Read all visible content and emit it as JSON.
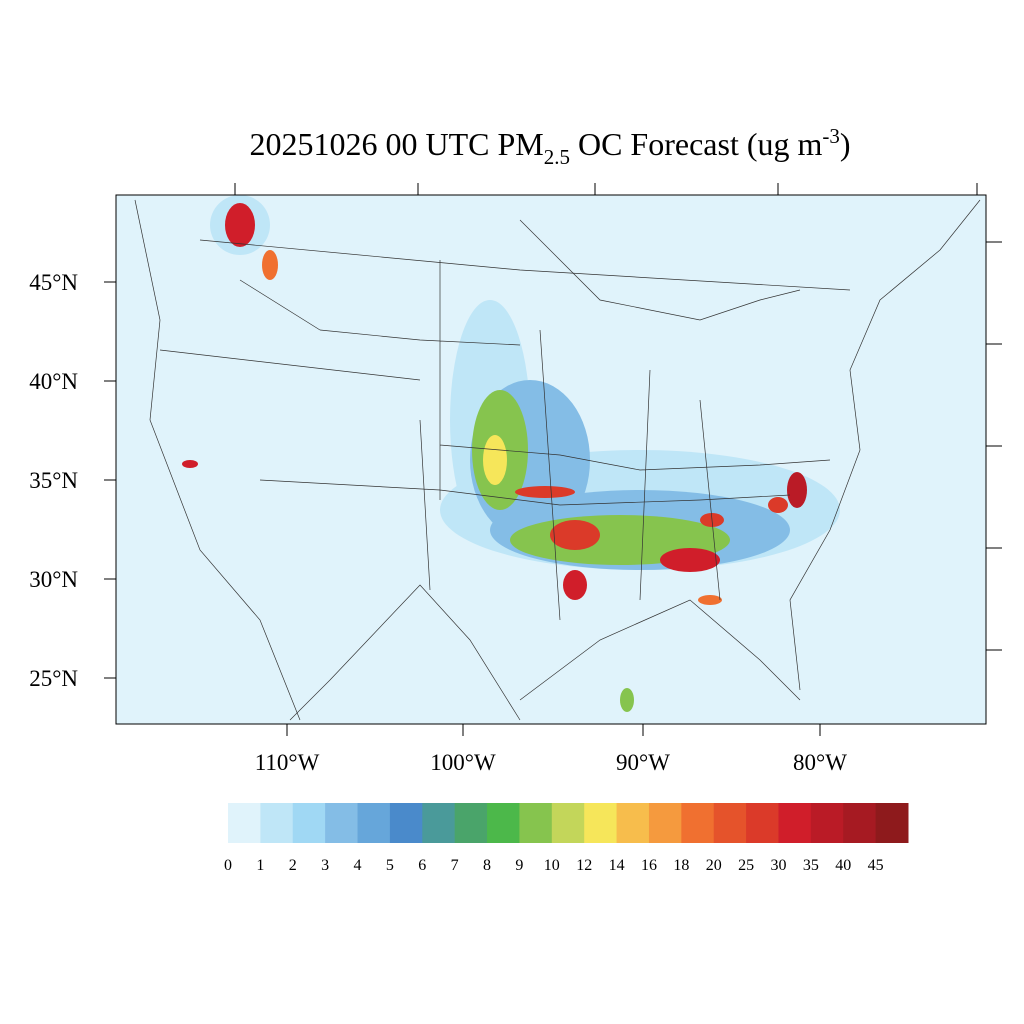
{
  "title": {
    "parts": [
      "20251026 00 UTC PM",
      "2.5",
      " OC Forecast (ug m",
      "-3",
      ")"
    ]
  },
  "map": {
    "lat_labels": [
      "45°N",
      "40°N",
      "35°N",
      "30°N",
      "25°N"
    ],
    "lon_labels": [
      "110°W",
      "100°W",
      "90°W",
      "80°W"
    ]
  },
  "colorbar": {
    "levels": [
      0,
      1,
      2,
      3,
      4,
      5,
      6,
      7,
      8,
      9,
      10,
      12,
      14,
      16,
      18,
      20,
      25,
      30,
      35,
      40,
      45
    ],
    "colors": [
      "#e0f3fb",
      "#bfe6f7",
      "#a0d8f4",
      "#84bde6",
      "#66a6da",
      "#4a8acb",
      "#4a9a9a",
      "#4aa46a",
      "#4cb84a",
      "#86c44e",
      "#c3d65a",
      "#f6e65a",
      "#f7bd4c",
      "#f59a3e",
      "#f07030",
      "#e5532b",
      "#db3a29",
      "#d01e2a",
      "#ba1b26",
      "#a61a22",
      "#8e1a1c"
    ]
  }
}
